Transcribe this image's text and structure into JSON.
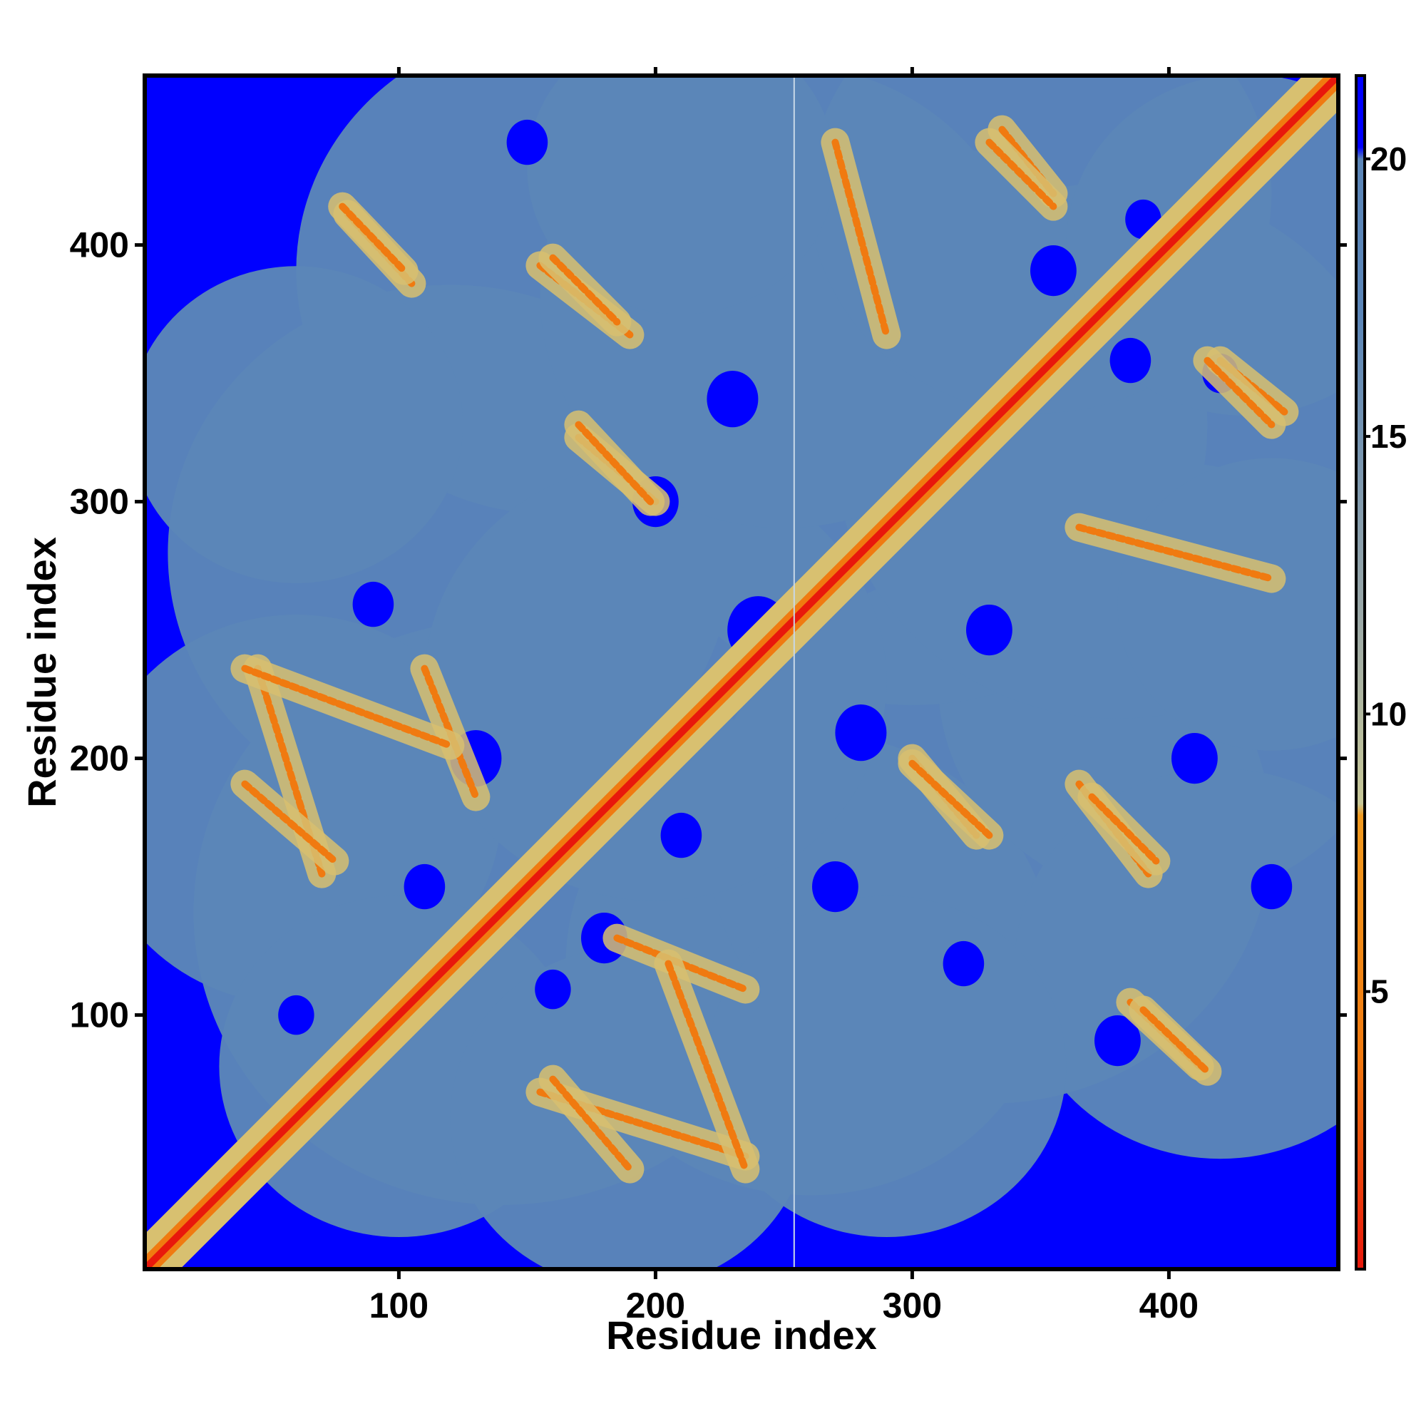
{
  "chart_data": {
    "type": "heatmap",
    "title": "",
    "xlabel": "Residue index",
    "ylabel": "Residue index",
    "xlim": [
      1,
      466
    ],
    "ylim": [
      1,
      466
    ],
    "x_ticks": [
      100,
      200,
      300,
      400
    ],
    "y_ticks": [
      100,
      200,
      300,
      400
    ],
    "grid": false,
    "colorbar": {
      "range": [
        0,
        21.5
      ],
      "ticks": [
        5,
        10,
        15,
        20
      ],
      "colors": {
        "contact": "#e8180c",
        "near": "#f07a10",
        "mid": "#d8c070",
        "far": "#5b86b8",
        "none": "#0000ff"
      }
    },
    "notes_visible": {
      "discontinuity_residue": 254
    },
    "features": {
      "diagonal": [
        1,
        466
      ],
      "antiparallel_contacts": [
        {
          "x": [
            80,
            105
          ],
          "y": [
            385,
            412
          ]
        },
        {
          "x": [
            155,
            190
          ],
          "y": [
            365,
            392
          ]
        },
        {
          "x": [
            170,
            200
          ],
          "y": [
            300,
            325
          ]
        },
        {
          "x": [
            110,
            130
          ],
          "y": [
            185,
            235
          ]
        },
        {
          "x": [
            45,
            70
          ],
          "y": [
            155,
            235
          ]
        },
        {
          "x": [
            270,
            290
          ],
          "y": [
            365,
            440
          ]
        },
        {
          "x": [
            335,
            355
          ],
          "y": [
            420,
            445
          ]
        },
        {
          "x": [
            300,
            330
          ],
          "y": [
            170,
            198
          ]
        },
        {
          "x": [
            370,
            395
          ],
          "y": [
            160,
            185
          ]
        },
        {
          "x": [
            390,
            415
          ],
          "y": [
            78,
            102
          ]
        },
        {
          "x": [
            205,
            235
          ],
          "y": [
            40,
            120
          ]
        },
        {
          "x": [
            160,
            190
          ],
          "y": [
            40,
            75
          ]
        },
        {
          "x": [
            415,
            440
          ],
          "y": [
            330,
            355
          ]
        }
      ]
    }
  }
}
